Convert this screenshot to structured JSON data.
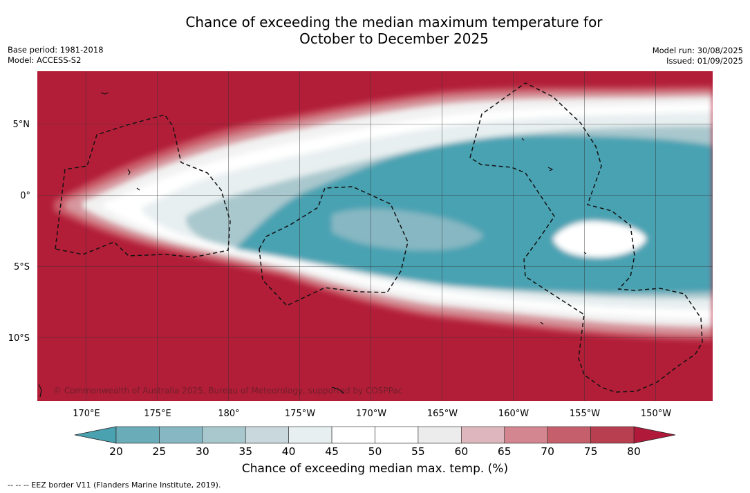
{
  "title": {
    "line1": "Chance of exceeding the median maximum temperature for",
    "line2": "October to December 2025"
  },
  "meta": {
    "base_period": "Base period: 1981-2018",
    "model": "Model: ACCESS-S2",
    "model_run": "Model run: 30/08/2025",
    "issued": "Issued: 01/09/2025"
  },
  "map": {
    "latitude_labels": [
      "5°N",
      "0°",
      "5°S",
      "10°S"
    ],
    "longitude_labels": [
      "170°E",
      "175°E",
      "180°",
      "175°W",
      "170°W",
      "165°W",
      "160°W",
      "155°W",
      "150°W"
    ],
    "copyright": "© Commonwealth of Australia 2025, Bureau of Meteorology, supported by COSPPac",
    "colors": {
      "high": "#b21e38",
      "low": "#49a2b2"
    }
  },
  "colorbar": {
    "ticks": [
      "20",
      "25",
      "30",
      "35",
      "40",
      "45",
      "50",
      "55",
      "60",
      "65",
      "70",
      "75",
      "80"
    ],
    "colors": [
      "#6aacb8",
      "#86b7c2",
      "#a8c8cd",
      "#c8d8dc",
      "#e8eff0",
      "#ffffff",
      "#ffffff",
      "#ececec",
      "#ddb7bd",
      "#d3868f",
      "#c55f6c",
      "#b83f50"
    ],
    "under_color": "#4aa1b0",
    "over_color": "#b0193a",
    "title": "Chance of exceeding median max. temp. (%)"
  },
  "footnote": "--  --  -- EEZ border V11 (Flanders Marine Institute, 2019)."
}
